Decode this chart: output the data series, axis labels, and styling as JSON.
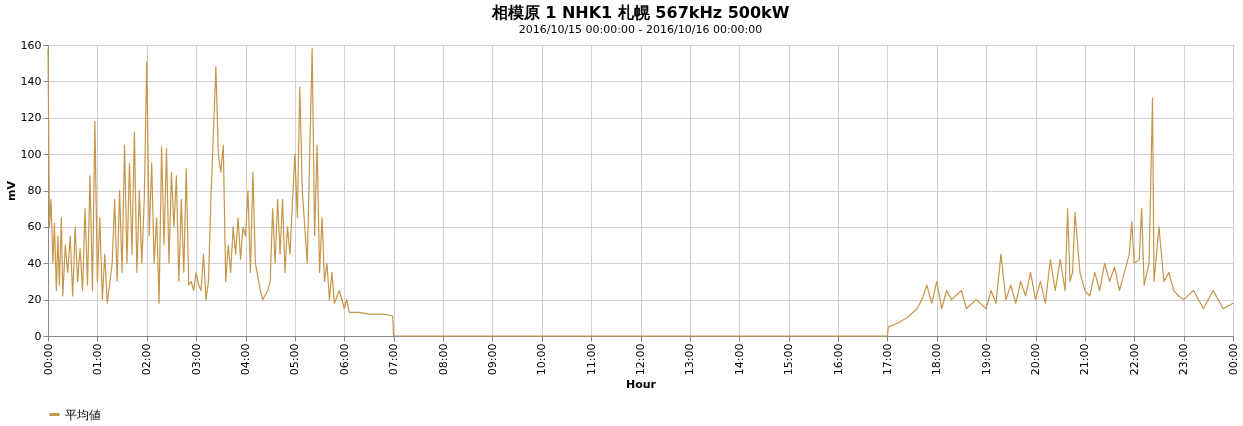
{
  "chart_data": {
    "type": "line",
    "title": "相模原 1 NHK1 札幌 567kHz 500kW",
    "subtitle": "2016/10/15 00:00:00 - 2016/10/16 00:00:00",
    "xlabel": "Hour",
    "ylabel": "mV",
    "x": [
      0.0,
      0.03,
      0.06,
      0.1,
      0.13,
      0.17,
      0.2,
      0.23,
      0.27,
      0.3,
      0.35,
      0.4,
      0.45,
      0.5,
      0.55,
      0.6,
      0.65,
      0.7,
      0.75,
      0.8,
      0.85,
      0.9,
      0.95,
      1.0,
      1.05,
      1.1,
      1.15,
      1.2,
      1.3,
      1.35,
      1.4,
      1.45,
      1.5,
      1.55,
      1.6,
      1.65,
      1.7,
      1.75,
      1.8,
      1.85,
      1.9,
      1.95,
      2.0,
      2.05,
      2.1,
      2.15,
      2.2,
      2.25,
      2.3,
      2.35,
      2.4,
      2.45,
      2.5,
      2.55,
      2.6,
      2.65,
      2.7,
      2.75,
      2.8,
      2.85,
      2.9,
      2.95,
      3.0,
      3.05,
      3.1,
      3.15,
      3.2,
      3.25,
      3.3,
      3.4,
      3.45,
      3.5,
      3.55,
      3.6,
      3.65,
      3.7,
      3.75,
      3.8,
      3.85,
      3.9,
      3.95,
      4.0,
      4.05,
      4.1,
      4.15,
      4.2,
      4.3,
      4.35,
      4.45,
      4.5,
      4.55,
      4.6,
      4.65,
      4.7,
      4.75,
      4.8,
      4.85,
      4.9,
      5.0,
      5.05,
      5.1,
      5.15,
      5.2,
      5.25,
      5.35,
      5.4,
      5.45,
      5.5,
      5.55,
      5.6,
      5.65,
      5.7,
      5.75,
      5.8,
      5.9,
      6.0,
      6.05,
      6.1,
      6.3,
      6.5,
      6.8,
      6.98,
      7.0,
      17.0,
      17.02,
      17.2,
      17.4,
      17.6,
      17.7,
      17.8,
      17.9,
      18.0,
      18.1,
      18.2,
      18.3,
      18.5,
      18.6,
      18.8,
      19.0,
      19.1,
      19.2,
      19.3,
      19.4,
      19.5,
      19.6,
      19.7,
      19.8,
      19.9,
      20.0,
      20.1,
      20.2,
      20.3,
      20.4,
      20.5,
      20.6,
      20.65,
      20.7,
      20.75,
      20.8,
      20.9,
      21.0,
      21.1,
      21.2,
      21.3,
      21.4,
      21.5,
      21.6,
      21.7,
      21.8,
      21.9,
      21.95,
      22.0,
      22.1,
      22.15,
      22.2,
      22.3,
      22.37,
      22.4,
      22.5,
      22.6,
      22.7,
      22.8,
      22.9,
      23.0,
      23.2,
      23.4,
      23.6,
      23.8,
      24.0
    ],
    "series": [
      {
        "name": "平均値",
        "color": "#c8964a",
        "values": [
          158,
          60,
          75,
          40,
          62,
          25,
          55,
          28,
          65,
          22,
          50,
          35,
          55,
          22,
          60,
          30,
          48,
          25,
          70,
          28,
          88,
          25,
          118,
          30,
          65,
          20,
          45,
          18,
          40,
          75,
          30,
          80,
          35,
          105,
          40,
          95,
          45,
          112,
          35,
          80,
          40,
          75,
          151,
          55,
          95,
          40,
          65,
          18,
          104,
          50,
          103,
          40,
          90,
          60,
          88,
          30,
          75,
          35,
          92,
          28,
          30,
          25,
          35,
          28,
          25,
          45,
          20,
          30,
          75,
          148,
          100,
          90,
          105,
          30,
          50,
          35,
          60,
          45,
          65,
          42,
          60,
          55,
          80,
          35,
          90,
          40,
          25,
          20,
          25,
          30,
          70,
          40,
          75,
          45,
          75,
          35,
          60,
          45,
          100,
          65,
          137,
          80,
          60,
          40,
          158,
          55,
          105,
          35,
          65,
          30,
          40,
          20,
          35,
          18,
          25,
          15,
          20,
          13,
          13,
          12,
          12,
          11,
          0,
          0,
          5,
          7,
          10,
          15,
          20,
          28,
          18,
          30,
          15,
          25,
          20,
          25,
          15,
          20,
          15,
          25,
          18,
          45,
          20,
          28,
          18,
          30,
          22,
          35,
          20,
          30,
          18,
          42,
          25,
          42,
          25,
          70,
          30,
          35,
          68,
          35,
          25,
          22,
          35,
          25,
          40,
          30,
          38,
          25,
          35,
          45,
          63,
          40,
          42,
          70,
          28,
          40,
          131,
          30,
          60,
          30,
          35,
          25,
          22,
          20,
          25,
          15,
          25,
          15,
          18
        ]
      }
    ],
    "xlim": [
      0,
      24
    ],
    "xticks": [
      {
        "value": 0,
        "label": "00:00"
      },
      {
        "value": 1,
        "label": "01:00"
      },
      {
        "value": 2,
        "label": "02:00"
      },
      {
        "value": 3,
        "label": "03:00"
      },
      {
        "value": 4,
        "label": "04:00"
      },
      {
        "value": 5,
        "label": "05:00"
      },
      {
        "value": 6,
        "label": "06:00"
      },
      {
        "value": 7,
        "label": "07:00"
      },
      {
        "value": 8,
        "label": "08:00"
      },
      {
        "value": 9,
        "label": "09:00"
      },
      {
        "value": 10,
        "label": "10:00"
      },
      {
        "value": 11,
        "label": "11:00"
      },
      {
        "value": 12,
        "label": "12:00"
      },
      {
        "value": 13,
        "label": "13:00"
      },
      {
        "value": 14,
        "label": "14:00"
      },
      {
        "value": 15,
        "label": "15:00"
      },
      {
        "value": 16,
        "label": "16:00"
      },
      {
        "value": 17,
        "label": "17:00"
      },
      {
        "value": 18,
        "label": "18:00"
      },
      {
        "value": 19,
        "label": "19:00"
      },
      {
        "value": 20,
        "label": "20:00"
      },
      {
        "value": 21,
        "label": "21:00"
      },
      {
        "value": 22,
        "label": "22:00"
      },
      {
        "value": 23,
        "label": "23:00"
      },
      {
        "value": 24,
        "label": "00:00"
      }
    ],
    "ylim": [
      0,
      160
    ],
    "yticks": [
      0,
      20,
      40,
      60,
      80,
      100,
      120,
      140,
      160
    ],
    "grid": true,
    "legend": "bottom",
    "marker": "none",
    "line_style": "solid"
  }
}
